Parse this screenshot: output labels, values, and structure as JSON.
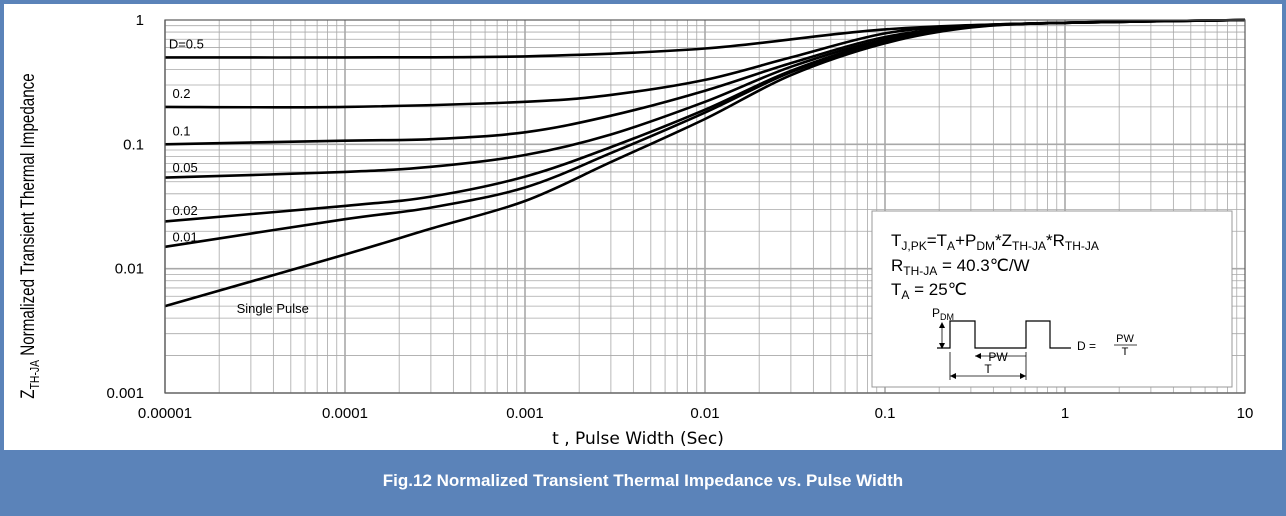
{
  "caption": "Fig.12 Normalized Transient Thermal Impedance vs. Pulse Width",
  "colors": {
    "frame": "#5b83b9",
    "caption_bg": "#5b83b9",
    "caption_text": "#ffffff",
    "curve": "#000000",
    "grid": "#a8a8a8"
  },
  "chart_data": {
    "type": "line",
    "x_scale": "log",
    "y_scale": "log",
    "xlim": [
      1e-05,
      10
    ],
    "ylim": [
      0.001,
      1
    ],
    "grid": true,
    "xlabel": "t , Pulse Width (Sec)",
    "ylabel_main": "Z",
    "ylabel_sub": "TH-JA",
    "ylabel_rest": " Normalized Transient Thermal Impedance",
    "x_ticks": [
      {
        "value": 1e-05,
        "label": "0.00001"
      },
      {
        "value": 0.0001,
        "label": "0.0001"
      },
      {
        "value": 0.001,
        "label": "0.001"
      },
      {
        "value": 0.01,
        "label": "0.01"
      },
      {
        "value": 0.1,
        "label": "0.1"
      },
      {
        "value": 1,
        "label": "1"
      },
      {
        "value": 10,
        "label": "10"
      }
    ],
    "y_ticks": [
      {
        "value": 0.001,
        "label": "0.001"
      },
      {
        "value": 0.01,
        "label": "0.01"
      },
      {
        "value": 0.1,
        "label": "0.1"
      },
      {
        "value": 1,
        "label": "1"
      }
    ],
    "series": [
      {
        "name": "D=0.5",
        "label_at": [
          1.05e-05,
          0.59
        ],
        "x": [
          1e-05,
          0.0001,
          0.001,
          0.01,
          0.1,
          1,
          10
        ],
        "y": [
          0.5,
          0.5,
          0.51,
          0.59,
          0.84,
          0.95,
          1.0
        ]
      },
      {
        "name": "0.2",
        "label_at": [
          1.1e-05,
          0.235
        ],
        "x": [
          1e-05,
          0.0001,
          0.001,
          0.003,
          0.01,
          0.03,
          0.1,
          0.3,
          1,
          10
        ],
        "y": [
          0.2,
          0.2,
          0.22,
          0.25,
          0.33,
          0.5,
          0.78,
          0.9,
          0.95,
          1.0
        ]
      },
      {
        "name": "0.1",
        "label_at": [
          1.1e-05,
          0.118
        ],
        "x": [
          1e-05,
          0.0001,
          0.0003,
          0.001,
          0.003,
          0.01,
          0.03,
          0.1,
          0.3,
          1,
          10
        ],
        "y": [
          0.1,
          0.107,
          0.11,
          0.125,
          0.17,
          0.27,
          0.45,
          0.73,
          0.89,
          0.95,
          1.0
        ]
      },
      {
        "name": "0.05",
        "label_at": [
          1.1e-05,
          0.06
        ],
        "x": [
          1e-05,
          0.0001,
          0.0003,
          0.001,
          0.003,
          0.01,
          0.03,
          0.1,
          0.3,
          1,
          10
        ],
        "y": [
          0.054,
          0.06,
          0.066,
          0.082,
          0.12,
          0.22,
          0.42,
          0.7,
          0.88,
          0.95,
          1.0
        ]
      },
      {
        "name": "0.02",
        "label_at": [
          1.1e-05,
          0.027
        ],
        "x": [
          1e-05,
          0.0001,
          0.0003,
          0.001,
          0.003,
          0.01,
          0.03,
          0.1,
          0.3,
          1,
          10
        ],
        "y": [
          0.024,
          0.032,
          0.038,
          0.055,
          0.095,
          0.19,
          0.39,
          0.68,
          0.88,
          0.95,
          1.0
        ]
      },
      {
        "name": "0.01",
        "label_at": [
          1.1e-05,
          0.0165
        ],
        "x": [
          1e-05,
          0.0001,
          0.0003,
          0.001,
          0.003,
          0.01,
          0.03,
          0.1,
          0.3,
          1,
          10
        ],
        "y": [
          0.015,
          0.025,
          0.031,
          0.045,
          0.085,
          0.18,
          0.38,
          0.67,
          0.88,
          0.95,
          1.0
        ]
      },
      {
        "name": "Single Pulse",
        "label_at": [
          2.5e-05,
          0.0044
        ],
        "x": [
          1e-05,
          0.0001,
          0.0003,
          0.001,
          0.003,
          0.01,
          0.03,
          0.1,
          0.3,
          1,
          10
        ],
        "y": [
          0.005,
          0.013,
          0.021,
          0.035,
          0.072,
          0.16,
          0.36,
          0.65,
          0.87,
          0.95,
          1.0
        ]
      }
    ]
  },
  "info_box": {
    "eq1": {
      "t": "T",
      "t_sub": "J,PK",
      "eq": "=T",
      "a_sub": "A",
      "plus": "+P",
      "dm_sub": "DM",
      "star1": "*Z",
      "z_sub": "TH-JA",
      "star2": "*R",
      "r_sub": "TH-JA"
    },
    "eq2": {
      "r": "R",
      "r_sub": "TH-JA",
      "rest": " = 40.3℃/W"
    },
    "eq3": {
      "t": "T",
      "t_sub": "A",
      "rest": " = 25℃"
    },
    "diagram": {
      "pdm": "P",
      "pdm_sub": "DM",
      "pw": "PW",
      "t": "T",
      "d_eq": "D =",
      "frac_num": "PW",
      "frac_den": "T"
    }
  }
}
